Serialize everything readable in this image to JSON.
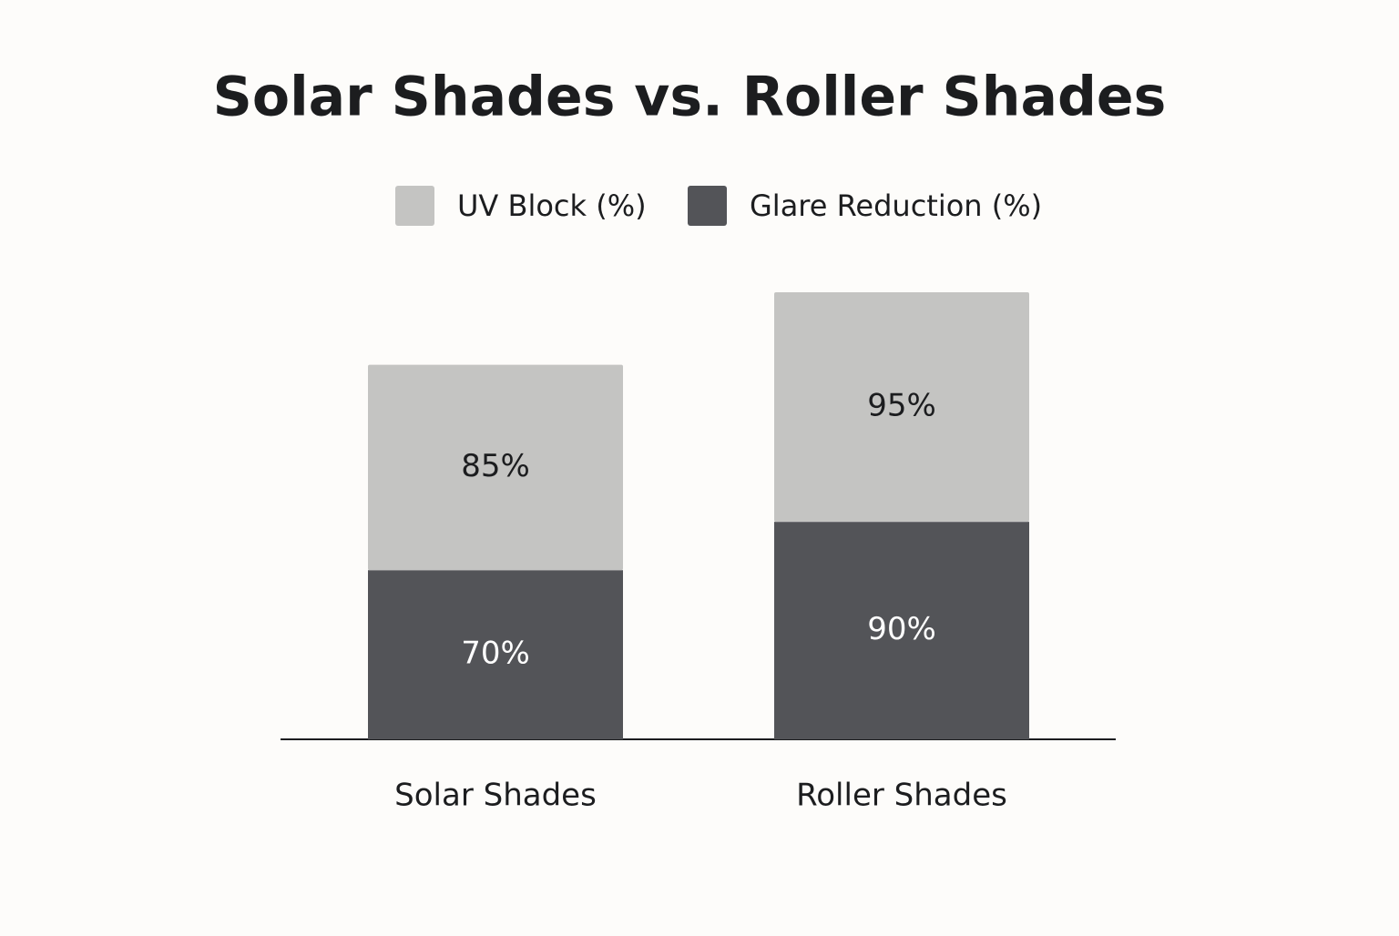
{
  "chart_data": {
    "type": "stacked-bar",
    "title": "Solar Shades vs. Roller Shades",
    "categories": [
      "Solar Shades",
      "Roller Shades"
    ],
    "series": [
      {
        "name": "UV Block (%)",
        "color": "#c4c4c2",
        "values": [
          85,
          95
        ],
        "value_labels": [
          "85%",
          "95%"
        ]
      },
      {
        "name": "Glare Reduction (%)",
        "color": "#535458",
        "values": [
          70,
          90
        ],
        "value_labels": [
          "70%",
          "90%"
        ]
      }
    ]
  }
}
